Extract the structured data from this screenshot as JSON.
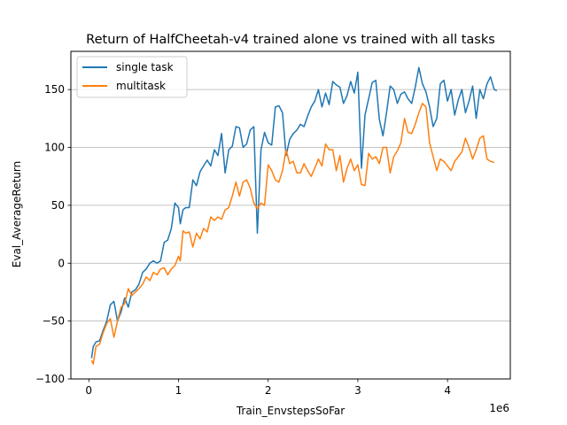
{
  "chart_data": {
    "type": "line",
    "title": "Return of HalfCheetah-v4 trained alone vs trained with all tasks",
    "xlabel": "Train_EnvstepsSoFar",
    "ylabel": "Eval_AverageReturn",
    "x_offset_label": "1e6",
    "xlim": [
      -0.2,
      4.7
    ],
    "ylim": [
      -100,
      183
    ],
    "x_ticks": [
      0,
      1,
      2,
      3,
      4
    ],
    "x_tick_labels": [
      "0",
      "1",
      "2",
      "3",
      "4"
    ],
    "y_ticks": [
      -100,
      -50,
      0,
      50,
      100,
      150
    ],
    "y_tick_labels": [
      "−100",
      "−50",
      "0",
      "50",
      "100",
      "150"
    ],
    "grid": "y-major",
    "legend_position": "top-left",
    "series": [
      {
        "name": "single task",
        "color": "#1f77b4",
        "points": [
          [
            0.03,
            -82
          ],
          [
            0.05,
            -72
          ],
          [
            0.08,
            -68
          ],
          [
            0.12,
            -67
          ],
          [
            0.16,
            -58
          ],
          [
            0.2,
            -50
          ],
          [
            0.24,
            -36
          ],
          [
            0.28,
            -33
          ],
          [
            0.32,
            -50
          ],
          [
            0.36,
            -42
          ],
          [
            0.4,
            -30
          ],
          [
            0.44,
            -38
          ],
          [
            0.48,
            -25
          ],
          [
            0.52,
            -23
          ],
          [
            0.56,
            -18
          ],
          [
            0.6,
            -8
          ],
          [
            0.64,
            -5
          ],
          [
            0.68,
            0
          ],
          [
            0.72,
            2
          ],
          [
            0.76,
            0
          ],
          [
            0.8,
            2
          ],
          [
            0.84,
            18
          ],
          [
            0.88,
            20
          ],
          [
            0.92,
            30
          ],
          [
            0.96,
            52
          ],
          [
            1.0,
            48
          ],
          [
            1.02,
            34
          ],
          [
            1.05,
            46
          ],
          [
            1.08,
            48
          ],
          [
            1.12,
            48
          ],
          [
            1.16,
            72
          ],
          [
            1.2,
            67
          ],
          [
            1.24,
            79
          ],
          [
            1.28,
            84
          ],
          [
            1.32,
            89
          ],
          [
            1.36,
            84
          ],
          [
            1.4,
            98
          ],
          [
            1.44,
            93
          ],
          [
            1.48,
            112
          ],
          [
            1.52,
            78
          ],
          [
            1.56,
            98
          ],
          [
            1.6,
            101
          ],
          [
            1.64,
            118
          ],
          [
            1.68,
            117
          ],
          [
            1.72,
            100
          ],
          [
            1.76,
            103
          ],
          [
            1.8,
            115
          ],
          [
            1.84,
            118
          ],
          [
            1.88,
            26
          ],
          [
            1.92,
            98
          ],
          [
            1.96,
            113
          ],
          [
            2.0,
            104
          ],
          [
            2.04,
            102
          ],
          [
            2.08,
            135
          ],
          [
            2.12,
            136
          ],
          [
            2.16,
            130
          ],
          [
            2.2,
            93
          ],
          [
            2.24,
            107
          ],
          [
            2.28,
            112
          ],
          [
            2.32,
            115
          ],
          [
            2.36,
            120
          ],
          [
            2.4,
            118
          ],
          [
            2.44,
            127
          ],
          [
            2.48,
            135
          ],
          [
            2.52,
            140
          ],
          [
            2.56,
            150
          ],
          [
            2.6,
            135
          ],
          [
            2.64,
            147
          ],
          [
            2.68,
            137
          ],
          [
            2.72,
            157
          ],
          [
            2.76,
            154
          ],
          [
            2.8,
            152
          ],
          [
            2.84,
            138
          ],
          [
            2.88,
            145
          ],
          [
            2.92,
            157
          ],
          [
            2.96,
            147
          ],
          [
            3.0,
            165
          ],
          [
            3.04,
            82
          ],
          [
            3.08,
            128
          ],
          [
            3.12,
            142
          ],
          [
            3.16,
            156
          ],
          [
            3.2,
            158
          ],
          [
            3.24,
            124
          ],
          [
            3.28,
            110
          ],
          [
            3.32,
            130
          ],
          [
            3.36,
            153
          ],
          [
            3.4,
            150
          ],
          [
            3.44,
            138
          ],
          [
            3.48,
            146
          ],
          [
            3.52,
            148
          ],
          [
            3.56,
            142
          ],
          [
            3.6,
            138
          ],
          [
            3.64,
            152
          ],
          [
            3.68,
            169
          ],
          [
            3.72,
            155
          ],
          [
            3.76,
            148
          ],
          [
            3.8,
            135
          ],
          [
            3.84,
            118
          ],
          [
            3.88,
            125
          ],
          [
            3.92,
            155
          ],
          [
            3.96,
            158
          ],
          [
            4.0,
            140
          ],
          [
            4.04,
            150
          ],
          [
            4.08,
            128
          ],
          [
            4.12,
            141
          ],
          [
            4.16,
            150
          ],
          [
            4.2,
            130
          ],
          [
            4.24,
            140
          ],
          [
            4.28,
            153
          ],
          [
            4.32,
            125
          ],
          [
            4.36,
            150
          ],
          [
            4.4,
            142
          ],
          [
            4.44,
            155
          ],
          [
            4.48,
            161
          ],
          [
            4.52,
            150
          ],
          [
            4.55,
            149
          ]
        ]
      },
      {
        "name": "multitask",
        "color": "#ff7f0e",
        "points": [
          [
            0.03,
            -84
          ],
          [
            0.05,
            -87
          ],
          [
            0.08,
            -72
          ],
          [
            0.12,
            -70
          ],
          [
            0.16,
            -60
          ],
          [
            0.2,
            -52
          ],
          [
            0.24,
            -48
          ],
          [
            0.28,
            -64
          ],
          [
            0.32,
            -50
          ],
          [
            0.36,
            -38
          ],
          [
            0.4,
            -35
          ],
          [
            0.44,
            -22
          ],
          [
            0.48,
            -28
          ],
          [
            0.52,
            -25
          ],
          [
            0.56,
            -22
          ],
          [
            0.6,
            -18
          ],
          [
            0.64,
            -12
          ],
          [
            0.68,
            -15
          ],
          [
            0.72,
            -8
          ],
          [
            0.76,
            -10
          ],
          [
            0.8,
            -5
          ],
          [
            0.84,
            -4
          ],
          [
            0.88,
            -10
          ],
          [
            0.92,
            -5
          ],
          [
            0.96,
            -2
          ],
          [
            1.0,
            6
          ],
          [
            1.02,
            2
          ],
          [
            1.05,
            28
          ],
          [
            1.08,
            26
          ],
          [
            1.12,
            27
          ],
          [
            1.16,
            14
          ],
          [
            1.2,
            26
          ],
          [
            1.24,
            21
          ],
          [
            1.28,
            30
          ],
          [
            1.32,
            27
          ],
          [
            1.36,
            40
          ],
          [
            1.4,
            37
          ],
          [
            1.44,
            40
          ],
          [
            1.48,
            38
          ],
          [
            1.52,
            46
          ],
          [
            1.56,
            48
          ],
          [
            1.6,
            58
          ],
          [
            1.64,
            70
          ],
          [
            1.68,
            58
          ],
          [
            1.72,
            70
          ],
          [
            1.76,
            72
          ],
          [
            1.8,
            65
          ],
          [
            1.84,
            52
          ],
          [
            1.88,
            47
          ],
          [
            1.92,
            52
          ],
          [
            1.96,
            50
          ],
          [
            2.0,
            85
          ],
          [
            2.04,
            80
          ],
          [
            2.08,
            72
          ],
          [
            2.12,
            70
          ],
          [
            2.16,
            80
          ],
          [
            2.2,
            98
          ],
          [
            2.24,
            86
          ],
          [
            2.28,
            88
          ],
          [
            2.32,
            78
          ],
          [
            2.36,
            78
          ],
          [
            2.4,
            86
          ],
          [
            2.44,
            80
          ],
          [
            2.48,
            75
          ],
          [
            2.52,
            82
          ],
          [
            2.56,
            90
          ],
          [
            2.6,
            84
          ],
          [
            2.64,
            103
          ],
          [
            2.68,
            98
          ],
          [
            2.72,
            98
          ],
          [
            2.76,
            80
          ],
          [
            2.8,
            93
          ],
          [
            2.84,
            70
          ],
          [
            2.88,
            82
          ],
          [
            2.92,
            90
          ],
          [
            2.96,
            80
          ],
          [
            3.0,
            85
          ],
          [
            3.04,
            68
          ],
          [
            3.08,
            67
          ],
          [
            3.12,
            95
          ],
          [
            3.16,
            90
          ],
          [
            3.2,
            92
          ],
          [
            3.24,
            86
          ],
          [
            3.28,
            100
          ],
          [
            3.32,
            100
          ],
          [
            3.36,
            78
          ],
          [
            3.4,
            92
          ],
          [
            3.44,
            97
          ],
          [
            3.48,
            104
          ],
          [
            3.52,
            125
          ],
          [
            3.56,
            113
          ],
          [
            3.6,
            112
          ],
          [
            3.64,
            120
          ],
          [
            3.68,
            130
          ],
          [
            3.72,
            138
          ],
          [
            3.76,
            135
          ],
          [
            3.8,
            104
          ],
          [
            3.84,
            92
          ],
          [
            3.88,
            80
          ],
          [
            3.92,
            90
          ],
          [
            3.96,
            88
          ],
          [
            4.0,
            84
          ],
          [
            4.04,
            80
          ],
          [
            4.08,
            88
          ],
          [
            4.12,
            92
          ],
          [
            4.16,
            96
          ],
          [
            4.2,
            108
          ],
          [
            4.24,
            100
          ],
          [
            4.28,
            90
          ],
          [
            4.32,
            98
          ],
          [
            4.36,
            108
          ],
          [
            4.4,
            110
          ],
          [
            4.44,
            90
          ],
          [
            4.48,
            88
          ],
          [
            4.52,
            87
          ]
        ]
      }
    ]
  }
}
